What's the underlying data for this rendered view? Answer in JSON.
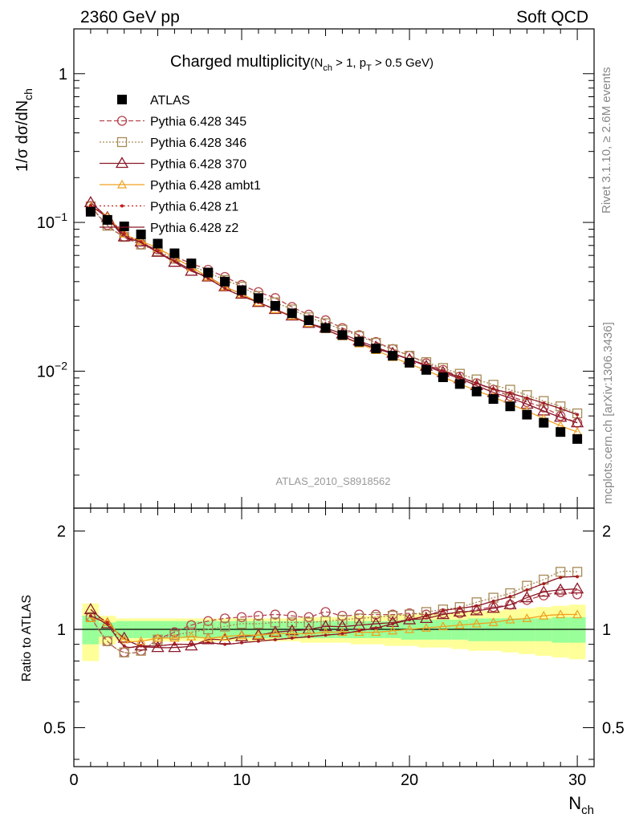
{
  "header": {
    "left": "2360 GeV pp",
    "right": "Soft QCD"
  },
  "side_labels": {
    "rivet": "Rivet 3.1.10, ≥ 2.6M events",
    "mcplots": "mcplots.cern.ch [arXiv:1306.3436]"
  },
  "chart_data": [
    {
      "type": "scatter",
      "panel": "main",
      "title": "Charged multiplicity",
      "title_cut": "(N",
      "title_cut_sub": "ch",
      "title_cut_mid": " > 1, p",
      "title_cut_sub2": "T",
      "title_cut_end": " > 0.5 GeV)",
      "ylabel_pre": "1/σ dσ/dN",
      "ylabel_sub": "ch",
      "watermark": "ATLAS_2010_S8918562",
      "yscale": "log",
      "ylim": [
        0.0012,
        2.0
      ],
      "xlim": [
        0,
        31
      ],
      "y_ticks": [
        {
          "value": 1,
          "base": "1",
          "exp": ""
        },
        {
          "value": 0.1,
          "base": "10",
          "exp": "−1"
        },
        {
          "value": 0.01,
          "base": "10",
          "exp": "−2"
        }
      ],
      "legend_position": "top-left",
      "x": [
        1,
        2,
        3,
        4,
        5,
        6,
        7,
        8,
        9,
        10,
        11,
        12,
        13,
        14,
        15,
        16,
        17,
        18,
        19,
        20,
        21,
        22,
        23,
        24,
        25,
        26,
        27,
        28,
        29,
        30
      ],
      "series": [
        {
          "name": "ATLAS",
          "color": "#000000",
          "marker": "square",
          "values": [
            0.118,
            0.104,
            0.094,
            0.083,
            0.072,
            0.062,
            0.053,
            0.046,
            0.04,
            0.035,
            0.031,
            0.0275,
            0.0245,
            0.022,
            0.0195,
            0.0175,
            0.0158,
            0.0142,
            0.0127,
            0.0114,
            0.0102,
            0.0091,
            0.0082,
            0.0073,
            0.0065,
            0.0058,
            0.0051,
            0.0045,
            0.0039,
            0.0035
          ]
        },
        {
          "name": "Pythia 6.428 345",
          "color": "#b5454e",
          "marker": "circle",
          "dash": "6,3",
          "values": [
            0.129,
            0.096,
            0.08,
            0.071,
            0.066,
            0.059,
            0.053,
            0.048,
            0.043,
            0.038,
            0.034,
            0.031,
            0.027,
            0.024,
            0.022,
            0.0195,
            0.0175,
            0.0157,
            0.0141,
            0.0127,
            0.0113,
            0.0102,
            0.0092,
            0.0083,
            0.0075,
            0.0068,
            0.0062,
            0.0057,
            0.005,
            0.0045
          ]
        },
        {
          "name": "Pythia 6.428 346",
          "color": "#a68a55",
          "marker": "square-open",
          "dash": "2,2",
          "values": [
            0.128,
            0.095,
            0.08,
            0.071,
            0.064,
            0.057,
            0.051,
            0.046,
            0.041,
            0.037,
            0.032,
            0.029,
            0.026,
            0.023,
            0.021,
            0.019,
            0.0172,
            0.0155,
            0.014,
            0.0127,
            0.0115,
            0.0105,
            0.0096,
            0.0088,
            0.0081,
            0.0075,
            0.0069,
            0.0063,
            0.0058,
            0.0052
          ]
        },
        {
          "name": "Pythia 6.428 370",
          "color": "#8b1a2a",
          "marker": "triangle-open",
          "dash": "",
          "values": [
            0.136,
            0.108,
            0.08,
            0.074,
            0.063,
            0.054,
            0.047,
            0.043,
            0.037,
            0.033,
            0.029,
            0.026,
            0.0235,
            0.021,
            0.0195,
            0.0178,
            0.016,
            0.0145,
            0.0132,
            0.012,
            0.0108,
            0.0098,
            0.0089,
            0.008,
            0.0072,
            0.0066,
            0.006,
            0.0054,
            0.0049,
            0.0045
          ]
        },
        {
          "name": "Pythia 6.428 ambt1",
          "color": "#f0a020",
          "marker": "triangle-small",
          "dash": "",
          "values": [
            0.127,
            0.109,
            0.084,
            0.075,
            0.067,
            0.058,
            0.05,
            0.043,
            0.037,
            0.033,
            0.029,
            0.026,
            0.0235,
            0.021,
            0.0191,
            0.0171,
            0.0153,
            0.0138,
            0.0124,
            0.0112,
            0.0101,
            0.0091,
            0.0082,
            0.0074,
            0.0067,
            0.006,
            0.0054,
            0.0048,
            0.0043,
            0.0039
          ]
        },
        {
          "name": "Pythia 6.428 z1",
          "color": "#c0201a",
          "marker": "dot",
          "dash": "2,3",
          "values": [
            0.13,
            0.109,
            0.084,
            0.074,
            0.064,
            0.055,
            0.048,
            0.042,
            0.036,
            0.032,
            0.029,
            0.026,
            0.0232,
            0.021,
            0.019,
            0.0171,
            0.0155,
            0.0142,
            0.0131,
            0.012,
            0.011,
            0.01,
            0.0091,
            0.0083,
            0.0076,
            0.0071,
            0.0066,
            0.0061,
            0.0056,
            0.0051
          ]
        },
        {
          "name": "Pythia 6.428 z2",
          "color": "#8b1a2a",
          "marker": "none",
          "dash": "",
          "values": [
            0.13,
            0.107,
            0.082,
            0.073,
            0.063,
            0.055,
            0.048,
            0.042,
            0.036,
            0.032,
            0.029,
            0.026,
            0.0232,
            0.021,
            0.019,
            0.0171,
            0.0155,
            0.0142,
            0.0131,
            0.012,
            0.011,
            0.01,
            0.0091,
            0.0083,
            0.0076,
            0.0071,
            0.0066,
            0.0061,
            0.0056,
            0.0051
          ]
        }
      ]
    },
    {
      "type": "line",
      "panel": "ratio",
      "ylabel": "Ratio to ATLAS",
      "xlabel_pre": "N",
      "xlabel_sub": "ch",
      "ylim": [
        0.38,
        2.35
      ],
      "yscale": "log",
      "xlim": [
        0,
        31
      ],
      "x_ticks": [
        0,
        10,
        20,
        30
      ],
      "y_ticks": [
        {
          "value": 2,
          "label": "2"
        },
        {
          "value": 1,
          "label": "1"
        },
        {
          "value": 0.5,
          "label": "0.5"
        }
      ],
      "bands": {
        "stat_color": "#99ff99",
        "total_color": "#ffff99",
        "stat_half_width": [
          0.1,
          0.05,
          0.06,
          0.06,
          0.06,
          0.06,
          0.06,
          0.06,
          0.06,
          0.06,
          0.06,
          0.06,
          0.06,
          0.06,
          0.06,
          0.06,
          0.06,
          0.06,
          0.06,
          0.07,
          0.07,
          0.07,
          0.07,
          0.08,
          0.08,
          0.08,
          0.08,
          0.08,
          0.09,
          0.09
        ],
        "total_half_width": [
          0.2,
          0.1,
          0.08,
          0.08,
          0.08,
          0.08,
          0.08,
          0.08,
          0.08,
          0.08,
          0.08,
          0.08,
          0.08,
          0.09,
          0.09,
          0.09,
          0.1,
          0.1,
          0.11,
          0.11,
          0.12,
          0.12,
          0.13,
          0.14,
          0.14,
          0.15,
          0.16,
          0.17,
          0.18,
          0.19
        ]
      },
      "x": [
        1,
        2,
        3,
        4,
        5,
        6,
        7,
        8,
        9,
        10,
        11,
        12,
        13,
        14,
        15,
        16,
        17,
        18,
        19,
        20,
        21,
        22,
        23,
        24,
        25,
        26,
        27,
        28,
        29,
        30
      ],
      "series": [
        {
          "name": "Pythia 6.428 345",
          "color": "#b5454e",
          "marker": "circle",
          "dash": "6,3",
          "values": [
            1.09,
            0.92,
            0.85,
            0.86,
            0.93,
            0.98,
            1.03,
            1.06,
            1.08,
            1.09,
            1.1,
            1.11,
            1.1,
            1.09,
            1.13,
            1.1,
            1.11,
            1.11,
            1.11,
            1.12,
            1.11,
            1.12,
            1.12,
            1.15,
            1.17,
            1.19,
            1.23,
            1.27,
            1.3,
            1.28
          ]
        },
        {
          "name": "Pythia 6.428 346",
          "color": "#a68a55",
          "marker": "square-open",
          "dash": "2,2",
          "values": [
            1.09,
            0.92,
            0.85,
            0.86,
            0.93,
            0.96,
            0.98,
            1.0,
            1.02,
            1.04,
            1.04,
            1.05,
            1.05,
            1.05,
            1.06,
            1.07,
            1.08,
            1.09,
            1.1,
            1.11,
            1.13,
            1.15,
            1.17,
            1.21,
            1.25,
            1.29,
            1.36,
            1.42,
            1.5,
            1.5
          ]
        },
        {
          "name": "Pythia 6.428 370",
          "color": "#8b1a2a",
          "marker": "triangle-open",
          "dash": "",
          "values": [
            1.15,
            1.04,
            0.94,
            0.89,
            0.88,
            0.88,
            0.89,
            0.93,
            0.93,
            0.95,
            0.96,
            0.98,
            0.99,
            1.0,
            1.02,
            1.02,
            1.03,
            1.04,
            1.05,
            1.07,
            1.08,
            1.11,
            1.13,
            1.14,
            1.16,
            1.19,
            1.25,
            1.3,
            1.32,
            1.33
          ]
        },
        {
          "name": "Pythia 6.428 ambt1",
          "color": "#f0a020",
          "marker": "triangle-small",
          "dash": "",
          "values": [
            1.08,
            1.05,
            0.93,
            0.92,
            0.94,
            0.94,
            0.95,
            0.94,
            0.95,
            0.96,
            0.96,
            0.97,
            0.97,
            0.97,
            0.98,
            0.98,
            0.98,
            0.98,
            0.99,
            1.0,
            1.01,
            1.02,
            1.03,
            1.04,
            1.05,
            1.07,
            1.08,
            1.1,
            1.11,
            1.11
          ]
        },
        {
          "name": "Pythia 6.428 z1",
          "color": "#c0201a",
          "marker": "dot",
          "dash": "2,3",
          "values": [
            1.1,
            1.05,
            0.89,
            0.89,
            0.89,
            0.9,
            0.9,
            0.91,
            0.9,
            0.91,
            0.92,
            0.93,
            0.94,
            0.95,
            0.96,
            0.97,
            0.99,
            1.01,
            1.04,
            1.07,
            1.1,
            1.14,
            1.16,
            1.18,
            1.22,
            1.26,
            1.32,
            1.38,
            1.44,
            1.45
          ]
        },
        {
          "name": "Pythia 6.428 z2",
          "color": "#8b1a2a",
          "marker": "none",
          "dash": "",
          "values": [
            1.1,
            1.03,
            0.89,
            0.89,
            0.89,
            0.9,
            0.9,
            0.91,
            0.9,
            0.91,
            0.92,
            0.93,
            0.94,
            0.95,
            0.96,
            0.97,
            0.99,
            1.01,
            1.04,
            1.07,
            1.1,
            1.14,
            1.16,
            1.18,
            1.22,
            1.26,
            1.32,
            1.38,
            1.44,
            1.45
          ]
        }
      ]
    }
  ]
}
